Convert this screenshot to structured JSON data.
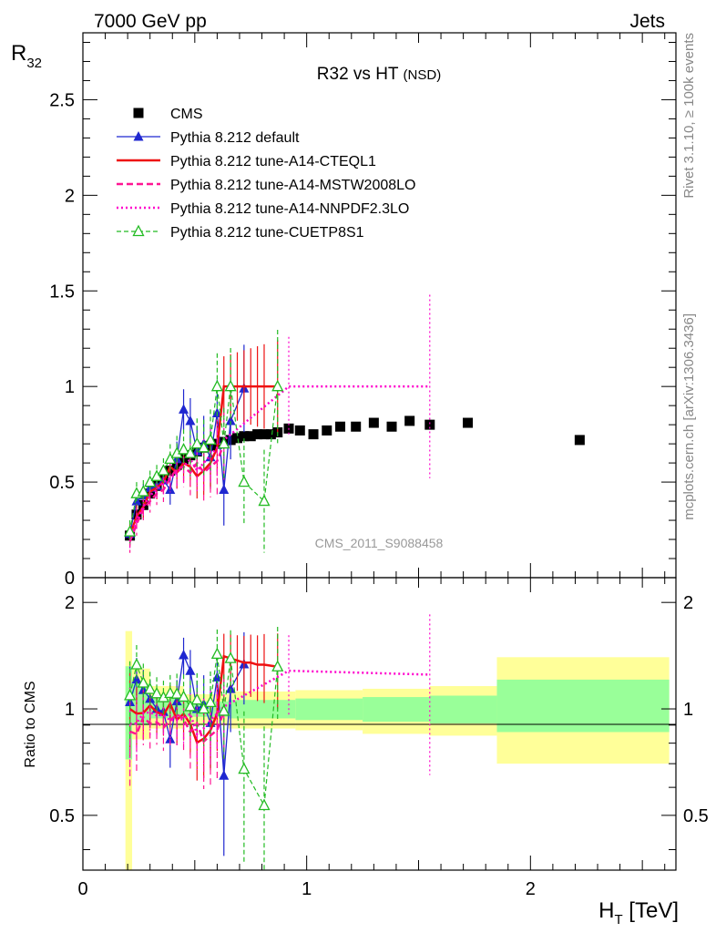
{
  "header": {
    "left_label": "7000 GeV pp",
    "right_label": "Jets",
    "y_symbol": "R",
    "y_subscript": "32",
    "x_symbol": "H",
    "x_subscript": "T",
    "x_unit": " [TeV]",
    "side_text_top": "Rivet 3.1.10, ≥ 100k events",
    "side_text_bottom": "mcplots.cern.ch [arXiv:1306.3436]",
    "watermark": "CMS_2011_S9088458"
  },
  "chart_data": {
    "type": "scatter",
    "title_main": "R32 vs HT",
    "title_sub": "(NSD)",
    "xlabel": "H_T [TeV]",
    "ylabel": "R_32",
    "xlim": [
      0,
      2.65
    ],
    "ylim": [
      0,
      2.85
    ],
    "ratio_ylabel": "Ratio to CMS",
    "ratio_ylim": [
      0.35,
      2.35
    ],
    "x_ticks": [
      {
        "value": 0,
        "label": "0"
      },
      {
        "value": 1,
        "label": "1"
      },
      {
        "value": 2,
        "label": "2"
      }
    ],
    "y_ticks": [
      {
        "value": 0,
        "label": "0"
      },
      {
        "value": 0.5,
        "label": "0.5"
      },
      {
        "value": 1,
        "label": "1"
      },
      {
        "value": 1.5,
        "label": "1.5"
      },
      {
        "value": 2,
        "label": "2"
      },
      {
        "value": 2.5,
        "label": "2.5"
      }
    ],
    "ratio_ticks": [
      {
        "value": 0.5,
        "label": "0.5"
      },
      {
        "value": 1,
        "label": "1"
      },
      {
        "value": 2,
        "label": "2"
      }
    ],
    "series": [
      {
        "name": "CMS",
        "color": "#000000",
        "x": [
          0.21,
          0.24,
          0.27,
          0.3,
          0.33,
          0.36,
          0.39,
          0.42,
          0.45,
          0.48,
          0.51,
          0.54,
          0.57,
          0.6,
          0.63,
          0.66,
          0.69,
          0.72,
          0.75,
          0.78,
          0.81,
          0.84,
          0.87,
          0.92,
          0.97,
          1.03,
          1.09,
          1.15,
          1.22,
          1.3,
          1.38,
          1.46,
          1.55,
          1.72,
          2.22
        ],
        "values": [
          0.22,
          0.33,
          0.38,
          0.44,
          0.48,
          0.52,
          0.56,
          0.59,
          0.62,
          0.64,
          0.66,
          0.68,
          0.69,
          0.7,
          0.71,
          0.72,
          0.73,
          0.74,
          0.74,
          0.75,
          0.75,
          0.75,
          0.76,
          0.78,
          0.77,
          0.75,
          0.77,
          0.79,
          0.79,
          0.81,
          0.79,
          0.82,
          0.8,
          0.81,
          0.72
        ]
      },
      {
        "name": "Pythia 8.212 default",
        "color": "#1f27d0",
        "x": [
          0.21,
          0.24,
          0.27,
          0.3,
          0.33,
          0.36,
          0.39,
          0.42,
          0.45,
          0.48,
          0.51,
          0.54,
          0.57,
          0.6,
          0.63,
          0.66,
          0.72
        ],
        "values": [
          0.23,
          0.4,
          0.43,
          0.47,
          0.48,
          0.51,
          0.46,
          0.62,
          0.88,
          0.82,
          0.66,
          0.7,
          0.63,
          0.86,
          0.46,
          0.82,
          0.99
        ]
      },
      {
        "name": "Pythia 8.212 tune-A14-CTEQL1",
        "color": "#ee1111",
        "x": [
          0.21,
          0.24,
          0.27,
          0.3,
          0.33,
          0.36,
          0.39,
          0.42,
          0.45,
          0.48,
          0.51,
          0.54,
          0.57,
          0.6,
          0.63,
          0.66,
          0.69,
          0.72,
          0.75,
          0.78,
          0.81,
          0.87
        ],
        "values": [
          0.22,
          0.32,
          0.37,
          0.45,
          0.47,
          0.5,
          0.58,
          0.55,
          0.6,
          0.58,
          0.53,
          0.56,
          0.6,
          0.68,
          1.0,
          1.0,
          1.0,
          1.0,
          1.0,
          1.0,
          1.0,
          1.0
        ]
      },
      {
        "name": "Pythia 8.212 tune-A14-MSTW2008LO",
        "color": "#ff1493",
        "x": [
          0.21,
          0.24,
          0.27,
          0.3,
          0.33,
          0.36,
          0.39,
          0.42,
          0.45,
          0.48,
          0.51,
          0.54,
          0.57,
          0.6,
          0.63
        ],
        "values": [
          0.19,
          0.28,
          0.36,
          0.4,
          0.44,
          0.46,
          0.52,
          0.57,
          0.58,
          0.55,
          0.6,
          0.55,
          0.58,
          0.61,
          0.7
        ]
      },
      {
        "name": "Pythia 8.212 tune-A14-NNPDF2.3LO",
        "color": "#ff00cc",
        "x": [
          0.21,
          0.24,
          0.27,
          0.3,
          0.33,
          0.36,
          0.39,
          0.42,
          0.45,
          0.48,
          0.51,
          0.54,
          0.57,
          0.6,
          0.63,
          0.92,
          1.55
        ],
        "values": [
          0.2,
          0.3,
          0.37,
          0.43,
          0.46,
          0.5,
          0.52,
          0.55,
          0.58,
          0.62,
          0.56,
          0.6,
          0.64,
          0.68,
          0.72,
          1.0,
          1.0
        ]
      },
      {
        "name": "Pythia 8.212 tune-CUETP8S1",
        "color": "#22bb22",
        "x": [
          0.21,
          0.24,
          0.27,
          0.3,
          0.33,
          0.36,
          0.39,
          0.42,
          0.45,
          0.48,
          0.51,
          0.54,
          0.57,
          0.6,
          0.63,
          0.66,
          0.72,
          0.81,
          0.87
        ],
        "values": [
          0.24,
          0.44,
          0.45,
          0.5,
          0.53,
          0.56,
          0.62,
          0.65,
          0.67,
          0.65,
          0.7,
          0.68,
          0.72,
          1.0,
          0.7,
          1.0,
          0.5,
          0.4,
          1.0
        ]
      }
    ],
    "bands": {
      "yellow_color": "#ffff99",
      "green_color": "#99ff99",
      "segments": [
        {
          "x0": 0.19,
          "x1": 0.22,
          "ylo": 0.35,
          "yhi": 1.66,
          "glo": 0.72,
          "ghi": 1.32
        },
        {
          "x0": 0.22,
          "x1": 0.3,
          "ylo": 0.82,
          "yhi": 1.3,
          "glo": 0.9,
          "ghi": 1.18
        },
        {
          "x0": 0.3,
          "x1": 0.45,
          "ylo": 0.88,
          "yhi": 1.16,
          "glo": 0.94,
          "ghi": 1.07
        },
        {
          "x0": 0.45,
          "x1": 0.65,
          "ylo": 0.9,
          "yhi": 1.1,
          "glo": 0.95,
          "ghi": 1.05
        },
        {
          "x0": 0.65,
          "x1": 0.95,
          "ylo": 0.88,
          "yhi": 1.12,
          "glo": 0.94,
          "ghi": 1.06
        },
        {
          "x0": 0.95,
          "x1": 1.25,
          "ylo": 0.87,
          "yhi": 1.13,
          "glo": 0.93,
          "ghi": 1.07
        },
        {
          "x0": 1.25,
          "x1": 1.55,
          "ylo": 0.85,
          "yhi": 1.14,
          "glo": 0.92,
          "ghi": 1.08
        },
        {
          "x0": 1.55,
          "x1": 1.85,
          "ylo": 0.84,
          "yhi": 1.16,
          "glo": 0.91,
          "ghi": 1.09
        },
        {
          "x0": 1.85,
          "x1": 2.62,
          "ylo": 0.7,
          "yhi": 1.4,
          "glo": 0.86,
          "ghi": 1.21
        }
      ]
    }
  }
}
